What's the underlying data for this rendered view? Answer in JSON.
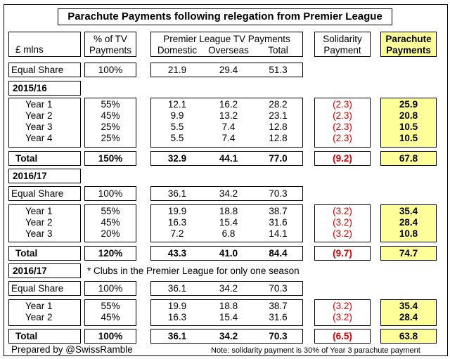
{
  "title": "Parachute Payments following relegation from Premier League",
  "header": {
    "unit": "£ mlns",
    "pct_tv_line1": "% of TV",
    "pct_tv_line2": "Payments",
    "pl_tv": "Premier League TV Payments",
    "domestic": "Domestic",
    "overseas": "Overseas",
    "total": "Total",
    "solidarity_line1": "Solidarity",
    "solidarity_line2": "Payment",
    "parachute_line1": "Parachute",
    "parachute_line2": "Payments"
  },
  "equal_share_top": {
    "label": "Equal Share",
    "pct": "100%",
    "domestic": "21.9",
    "overseas": "29.4",
    "total": "51.3"
  },
  "s1": {
    "label": "2015/16",
    "rows": [
      {
        "label": "Year 1",
        "pct": "55%",
        "domestic": "12.1",
        "overseas": "16.2",
        "total": "28.2",
        "solidarity": "(2.3)",
        "parachute": "25.9"
      },
      {
        "label": "Year 2",
        "pct": "45%",
        "domestic": "9.9",
        "overseas": "13.2",
        "total": "23.1",
        "solidarity": "(2.3)",
        "parachute": "20.8"
      },
      {
        "label": "Year 3",
        "pct": "25%",
        "domestic": "5.5",
        "overseas": "7.4",
        "total": "12.8",
        "solidarity": "(2.3)",
        "parachute": "10.5"
      },
      {
        "label": "Year 4",
        "pct": "25%",
        "domestic": "5.5",
        "overseas": "7.4",
        "total": "12.8",
        "solidarity": "(2.3)",
        "parachute": "10.5"
      }
    ],
    "total": {
      "label": "Total",
      "pct": "150%",
      "domestic": "32.9",
      "overseas": "44.1",
      "total": "77.0",
      "solidarity": "(9.2)",
      "parachute": "67.8"
    }
  },
  "s2": {
    "label": "2016/17",
    "equal": {
      "label": "Equal Share",
      "pct": "100%",
      "domestic": "36.1",
      "overseas": "34.2",
      "total": "70.3"
    },
    "rows": [
      {
        "label": "Year 1",
        "pct": "55%",
        "domestic": "19.9",
        "overseas": "18.8",
        "total": "38.7",
        "solidarity": "(3.2)",
        "parachute": "35.4"
      },
      {
        "label": "Year 2",
        "pct": "45%",
        "domestic": "16.3",
        "overseas": "15.4",
        "total": "31.6",
        "solidarity": "(3.2)",
        "parachute": "28.4"
      },
      {
        "label": "Year 3",
        "pct": "20%",
        "domestic": "7.2",
        "overseas": "6.8",
        "total": "14.1",
        "solidarity": "(3.2)",
        "parachute": "10.8"
      }
    ],
    "total": {
      "label": "Total",
      "pct": "120%",
      "domestic": "43.3",
      "overseas": "41.0",
      "total": "84.4",
      "solidarity": "(9.7)",
      "parachute": "74.7"
    }
  },
  "s3": {
    "label": "2016/17",
    "note": "* Clubs in the Premier League for only one season",
    "equal": {
      "label": "Equal Share",
      "pct": "100%",
      "domestic": "36.1",
      "overseas": "34.2",
      "total": "70.3"
    },
    "rows": [
      {
        "label": "Year 1",
        "pct": "55%",
        "domestic": "19.9",
        "overseas": "18.8",
        "total": "38.7",
        "solidarity": "(3.2)",
        "parachute": "35.4"
      },
      {
        "label": "Year 2",
        "pct": "45%",
        "domestic": "16.3",
        "overseas": "15.4",
        "total": "31.6",
        "solidarity": "(3.2)",
        "parachute": "28.4"
      }
    ],
    "total": {
      "label": "Total",
      "pct": "100%",
      "domestic": "36.1",
      "overseas": "34.2",
      "total": "70.3",
      "solidarity": "(6.5)",
      "parachute": "63.8"
    }
  },
  "footer": {
    "credit": "Prepared by @SwissRamble",
    "note": "Note: solidarity payment is 30% of Year 3 parachute payment"
  },
  "colors": {
    "highlight": "#ffff99",
    "negative": "#d40000"
  }
}
